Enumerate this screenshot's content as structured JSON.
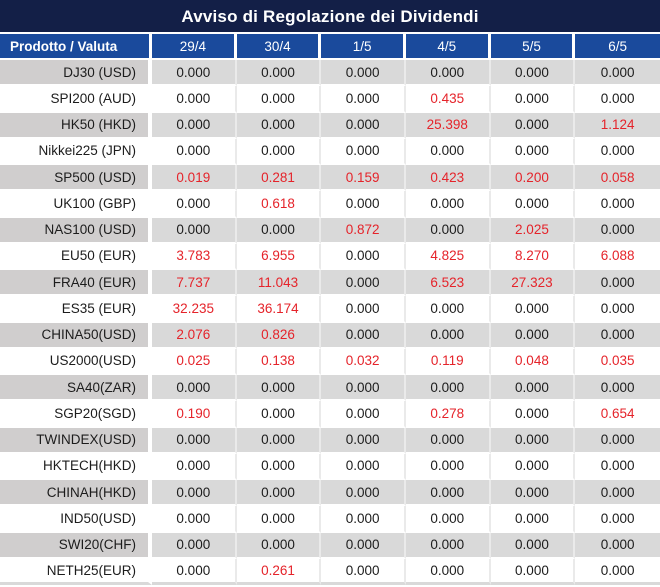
{
  "title": "Avviso di Regolazione dei Dividendi",
  "colors": {
    "title_bar_navy": "#131f47",
    "header_blue": "#1a4a9c",
    "row_gray": "#d9d9d9",
    "product_col_gray": "#d0cece",
    "value_red": "#e5232a",
    "text_dark": "#1c1c1c"
  },
  "table": {
    "product_header": "Prodotto / Valuta",
    "date_headers": [
      "29/4",
      "30/4",
      "1/5",
      "4/5",
      "5/5",
      "6/5"
    ],
    "rows": [
      {
        "product": "DJ30 (USD)",
        "values": [
          {
            "v": "0.000",
            "red": false
          },
          {
            "v": "0.000",
            "red": false
          },
          {
            "v": "0.000",
            "red": false
          },
          {
            "v": "0.000",
            "red": false
          },
          {
            "v": "0.000",
            "red": false
          },
          {
            "v": "0.000",
            "red": false
          }
        ]
      },
      {
        "product": "SPI200 (AUD)",
        "values": [
          {
            "v": "0.000",
            "red": false
          },
          {
            "v": "0.000",
            "red": false
          },
          {
            "v": "0.000",
            "red": false
          },
          {
            "v": "0.435",
            "red": true
          },
          {
            "v": "0.000",
            "red": false
          },
          {
            "v": "0.000",
            "red": false
          }
        ]
      },
      {
        "product": "HK50 (HKD)",
        "values": [
          {
            "v": "0.000",
            "red": false
          },
          {
            "v": "0.000",
            "red": false
          },
          {
            "v": "0.000",
            "red": false
          },
          {
            "v": "25.398",
            "red": true
          },
          {
            "v": "0.000",
            "red": false
          },
          {
            "v": "1.124",
            "red": true
          }
        ]
      },
      {
        "product": "Nikkei225 (JPN)",
        "values": [
          {
            "v": "0.000",
            "red": false
          },
          {
            "v": "0.000",
            "red": false
          },
          {
            "v": "0.000",
            "red": false
          },
          {
            "v": "0.000",
            "red": false
          },
          {
            "v": "0.000",
            "red": false
          },
          {
            "v": "0.000",
            "red": false
          }
        ]
      },
      {
        "product": "SP500 (USD)",
        "values": [
          {
            "v": "0.019",
            "red": true
          },
          {
            "v": "0.281",
            "red": true
          },
          {
            "v": "0.159",
            "red": true
          },
          {
            "v": "0.423",
            "red": true
          },
          {
            "v": "0.200",
            "red": true
          },
          {
            "v": "0.058",
            "red": true
          }
        ]
      },
      {
        "product": "UK100 (GBP)",
        "values": [
          {
            "v": "0.000",
            "red": false
          },
          {
            "v": "0.618",
            "red": true
          },
          {
            "v": "0.000",
            "red": false
          },
          {
            "v": "0.000",
            "red": false
          },
          {
            "v": "0.000",
            "red": false
          },
          {
            "v": "0.000",
            "red": false
          }
        ]
      },
      {
        "product": "NAS100 (USD)",
        "values": [
          {
            "v": "0.000",
            "red": false
          },
          {
            "v": "0.000",
            "red": false
          },
          {
            "v": "0.872",
            "red": true
          },
          {
            "v": "0.000",
            "red": false
          },
          {
            "v": "2.025",
            "red": true
          },
          {
            "v": "0.000",
            "red": false
          }
        ]
      },
      {
        "product": "EU50 (EUR)",
        "values": [
          {
            "v": "3.783",
            "red": true
          },
          {
            "v": "6.955",
            "red": true
          },
          {
            "v": "0.000",
            "red": false
          },
          {
            "v": "4.825",
            "red": true
          },
          {
            "v": "8.270",
            "red": true
          },
          {
            "v": "6.088",
            "red": true
          }
        ]
      },
      {
        "product": "FRA40 (EUR)",
        "values": [
          {
            "v": "7.737",
            "red": true
          },
          {
            "v": "11.043",
            "red": true
          },
          {
            "v": "0.000",
            "red": false
          },
          {
            "v": "6.523",
            "red": true
          },
          {
            "v": "27.323",
            "red": true
          },
          {
            "v": "0.000",
            "red": false
          }
        ]
      },
      {
        "product": "ES35 (EUR)",
        "values": [
          {
            "v": "32.235",
            "red": true
          },
          {
            "v": "36.174",
            "red": true
          },
          {
            "v": "0.000",
            "red": false
          },
          {
            "v": "0.000",
            "red": false
          },
          {
            "v": "0.000",
            "red": false
          },
          {
            "v": "0.000",
            "red": false
          }
        ]
      },
      {
        "product": "CHINA50(USD)",
        "values": [
          {
            "v": "2.076",
            "red": true
          },
          {
            "v": "0.826",
            "red": true
          },
          {
            "v": "0.000",
            "red": false
          },
          {
            "v": "0.000",
            "red": false
          },
          {
            "v": "0.000",
            "red": false
          },
          {
            "v": "0.000",
            "red": false
          }
        ]
      },
      {
        "product": "US2000(USD)",
        "values": [
          {
            "v": "0.025",
            "red": true
          },
          {
            "v": "0.138",
            "red": true
          },
          {
            "v": "0.032",
            "red": true
          },
          {
            "v": "0.119",
            "red": true
          },
          {
            "v": "0.048",
            "red": true
          },
          {
            "v": "0.035",
            "red": true
          }
        ]
      },
      {
        "product": "SA40(ZAR)",
        "values": [
          {
            "v": "0.000",
            "red": false
          },
          {
            "v": "0.000",
            "red": false
          },
          {
            "v": "0.000",
            "red": false
          },
          {
            "v": "0.000",
            "red": false
          },
          {
            "v": "0.000",
            "red": false
          },
          {
            "v": "0.000",
            "red": false
          }
        ]
      },
      {
        "product": "SGP20(SGD)",
        "values": [
          {
            "v": "0.190",
            "red": true
          },
          {
            "v": "0.000",
            "red": false
          },
          {
            "v": "0.000",
            "red": false
          },
          {
            "v": "0.278",
            "red": true
          },
          {
            "v": "0.000",
            "red": false
          },
          {
            "v": "0.654",
            "red": true
          }
        ]
      },
      {
        "product": "TWINDEX(USD)",
        "values": [
          {
            "v": "0.000",
            "red": false
          },
          {
            "v": "0.000",
            "red": false
          },
          {
            "v": "0.000",
            "red": false
          },
          {
            "v": "0.000",
            "red": false
          },
          {
            "v": "0.000",
            "red": false
          },
          {
            "v": "0.000",
            "red": false
          }
        ]
      },
      {
        "product": "HKTECH(HKD)",
        "values": [
          {
            "v": "0.000",
            "red": false
          },
          {
            "v": "0.000",
            "red": false
          },
          {
            "v": "0.000",
            "red": false
          },
          {
            "v": "0.000",
            "red": false
          },
          {
            "v": "0.000",
            "red": false
          },
          {
            "v": "0.000",
            "red": false
          }
        ]
      },
      {
        "product": "CHINAH(HKD)",
        "values": [
          {
            "v": "0.000",
            "red": false
          },
          {
            "v": "0.000",
            "red": false
          },
          {
            "v": "0.000",
            "red": false
          },
          {
            "v": "0.000",
            "red": false
          },
          {
            "v": "0.000",
            "red": false
          },
          {
            "v": "0.000",
            "red": false
          }
        ]
      },
      {
        "product": "IND50(USD)",
        "values": [
          {
            "v": "0.000",
            "red": false
          },
          {
            "v": "0.000",
            "red": false
          },
          {
            "v": "0.000",
            "red": false
          },
          {
            "v": "0.000",
            "red": false
          },
          {
            "v": "0.000",
            "red": false
          },
          {
            "v": "0.000",
            "red": false
          }
        ]
      },
      {
        "product": "SWI20(CHF)",
        "values": [
          {
            "v": "0.000",
            "red": false
          },
          {
            "v": "0.000",
            "red": false
          },
          {
            "v": "0.000",
            "red": false
          },
          {
            "v": "0.000",
            "red": false
          },
          {
            "v": "0.000",
            "red": false
          },
          {
            "v": "0.000",
            "red": false
          }
        ]
      },
      {
        "product": "NETH25(EUR)",
        "values": [
          {
            "v": "0.000",
            "red": false
          },
          {
            "v": "0.261",
            "red": true
          },
          {
            "v": "0.000",
            "red": false
          },
          {
            "v": "0.000",
            "red": false
          },
          {
            "v": "0.000",
            "red": false
          },
          {
            "v": "0.000",
            "red": false
          }
        ]
      }
    ]
  }
}
